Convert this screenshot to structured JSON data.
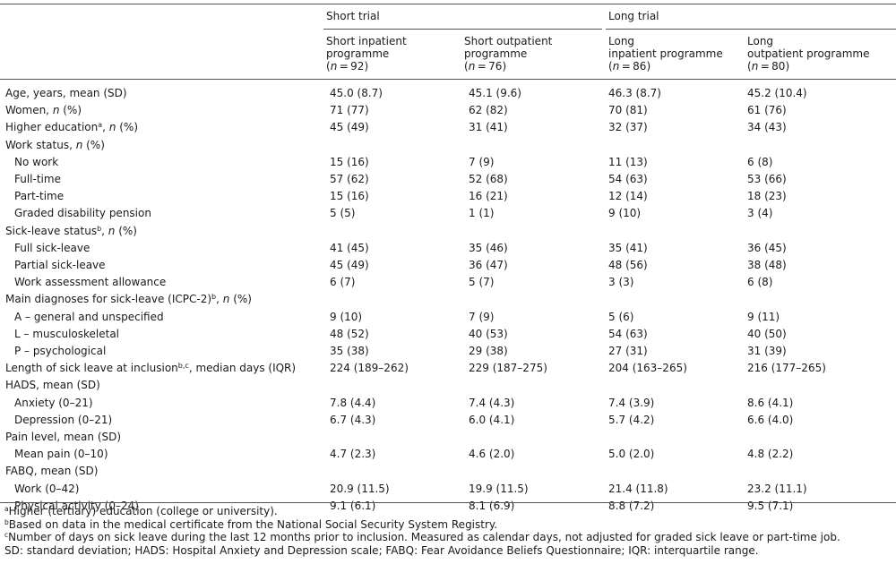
{
  "header": {
    "group_short": "Short trial",
    "group_long": "Long trial",
    "columns": [
      {
        "line1": "Short inpatient",
        "line2": "programme",
        "n": "92"
      },
      {
        "line1": "Short outpatient",
        "line2": "programme",
        "n": "76"
      },
      {
        "line1": "Long",
        "line2": "inpatient programme",
        "n": "86"
      },
      {
        "line1": "Long",
        "line2": "outpatient programme",
        "n": "80"
      }
    ]
  },
  "rows": [
    {
      "label": "Age, years, mean (SD)",
      "values": [
        "45.0 (8.7)",
        "45.1 (9.6)",
        "46.3 (8.7)",
        "45.2 (10.4)"
      ]
    },
    {
      "label": "Women, ",
      "italic_n": "n",
      "suffix": " (%)",
      "values": [
        "71 (77)",
        "62 (82)",
        "70 (81)",
        "61 (76)"
      ]
    },
    {
      "label": "Higher education",
      "sup": "a",
      "mid": ", ",
      "italic_n": "n",
      "suffix": " (%)",
      "values": [
        "45 (49)",
        "31 (41)",
        "32 (37)",
        "34 (43)"
      ]
    },
    {
      "label": "Work status, ",
      "italic_n": "n",
      "suffix": " (%)",
      "values": []
    },
    {
      "label": "No work",
      "values": [
        "15 (16)",
        "7 (9)",
        "11 (13)",
        "6 (8)"
      ]
    },
    {
      "label": "Full-time",
      "values": [
        "57 (62)",
        "52 (68)",
        "54 (63)",
        "53 (66)"
      ]
    },
    {
      "label": "Part-time",
      "values": [
        "15 (16)",
        "16 (21)",
        "12 (14)",
        "18 (23)"
      ]
    },
    {
      "label": "Graded disability pension",
      "values": [
        "5 (5)",
        "1 (1)",
        "9 (10)",
        "3 (4)"
      ]
    },
    {
      "label": "Sick-leave status",
      "sup": "b",
      "mid": ", ",
      "italic_n": "n",
      "suffix": " (%)",
      "values": []
    },
    {
      "label": "Full sick-leave",
      "values": [
        "41 (45)",
        "35 (46)",
        "35 (41)",
        "36 (45)"
      ]
    },
    {
      "label": "Partial sick-leave",
      "values": [
        "45 (49)",
        "36 (47)",
        "48 (56)",
        "38 (48)"
      ]
    },
    {
      "label": "Work assessment allowance",
      "values": [
        "6 (7)",
        "5 (7)",
        "3 (3)",
        "6 (8)"
      ]
    },
    {
      "label": "Main diagnoses for sick-leave (ICPC-2)",
      "sup": "b",
      "mid": ", ",
      "italic_n": "n",
      "suffix": " (%)",
      "values": []
    },
    {
      "label": "A – general and unspecified",
      "values": [
        "9 (10)",
        "7 (9)",
        "5 (6)",
        "9 (11)"
      ]
    },
    {
      "label": "L – musculoskeletal",
      "values": [
        "48 (52)",
        "40 (53)",
        "54 (63)",
        "40 (50)"
      ]
    },
    {
      "label": "P – psychological",
      "values": [
        "35 (38)",
        "29 (38)",
        "27 (31)",
        "31 (39)"
      ]
    },
    {
      "label": "Length of sick leave at inclusion",
      "sup": "b,c",
      "mid": ", median days (IQR)",
      "values": [
        "224 (189–262)",
        "229 (187–275)",
        "204 (163–265)",
        "216 (177–265)"
      ]
    },
    {
      "label": "HADS, mean (SD)",
      "values": []
    },
    {
      "label": "Anxiety (0–21)",
      "values": [
        "7.8 (4.4)",
        "7.4 (4.3)",
        "7.4 (3.9)",
        "8.6 (4.1)"
      ]
    },
    {
      "label": "Depression (0–21)",
      "values": [
        "6.7 (4.3)",
        "6.0 (4.1)",
        "5.7 (4.2)",
        "6.6 (4.0)"
      ]
    },
    {
      "label": "Pain level, mean (SD)",
      "values": []
    },
    {
      "label": "Mean pain (0–10)",
      "values": [
        "4.7 (2.3)",
        "4.6 (2.0)",
        "5.0 (2.0)",
        "4.8 (2.2)"
      ]
    },
    {
      "label": "FABQ, mean (SD)",
      "values": []
    },
    {
      "label": "Work (0–42)",
      "values": [
        "20.9 (11.5)",
        "19.9 (11.5)",
        "21.4 (11.8)",
        "23.2 (11.1)"
      ]
    },
    {
      "label": "Physical activity (0–24)",
      "values": [
        "9.1 (6.1)",
        "8.1 (6.9)",
        "8.8 (7.2)",
        "9.5 (7.1)"
      ]
    }
  ],
  "footnotes": [
    {
      "mark": "a",
      "text": "Higher (tertiary) education (college or university)."
    },
    {
      "mark": "b",
      "text": "Based on data in the medical certificate from the National Social Security System Registry."
    },
    {
      "mark": "c",
      "text": "Number of days on sick leave during the last 12 months prior to inclusion. Measured as calendar days, not adjusted for graded sick leave or part-time job."
    },
    {
      "mark": "",
      "text": "SD: standard deviation; HADS: Hospital Anxiety and Depression scale; FABQ: Fear Avoidance Beliefs Questionnaire; IQR: interquartile range."
    }
  ]
}
